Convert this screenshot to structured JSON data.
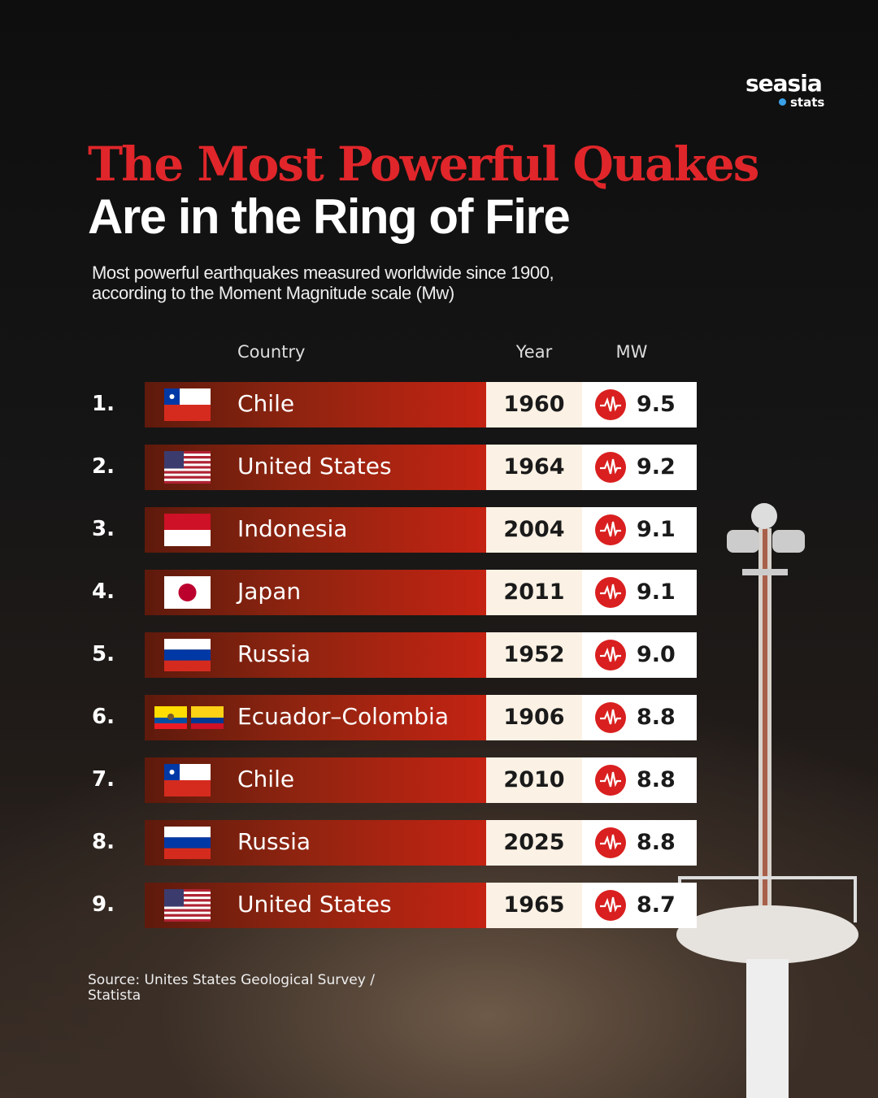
{
  "brand": {
    "name": "seasia",
    "tag": "stats"
  },
  "header": {
    "title_line1": "The Most Powerful Quakes",
    "title_line2": "Are in the Ring of Fire",
    "subtitle_line1": "Most powerful earthquakes measured worldwide since 1900,",
    "subtitle_line2": "according to the Moment Magnitude scale (Mw)"
  },
  "table": {
    "columns": [
      "Country",
      "Year",
      "MW"
    ],
    "rows": [
      [
        "1.",
        "Chile",
        "1960",
        "9.5"
      ],
      [
        "2.",
        "United States",
        "1964",
        "9.2"
      ],
      [
        "3.",
        "Indonesia",
        "2004",
        "9.1"
      ],
      [
        "4.",
        "Japan",
        "2011",
        "9.1"
      ],
      [
        "5.",
        "Russia",
        "1952",
        "9.0"
      ],
      [
        "6.",
        "Ecuador–Colombia",
        "1906",
        "8.8"
      ],
      [
        "7.",
        "Chile",
        "2010",
        "8.8"
      ],
      [
        "8.",
        "Russia",
        "2025",
        "8.8"
      ],
      [
        "9.",
        "United States",
        "1965",
        "8.7"
      ]
    ]
  },
  "footer": {
    "source_line1": "Source: Unites States Geological Survey /",
    "source_line2": "Statista"
  }
}
